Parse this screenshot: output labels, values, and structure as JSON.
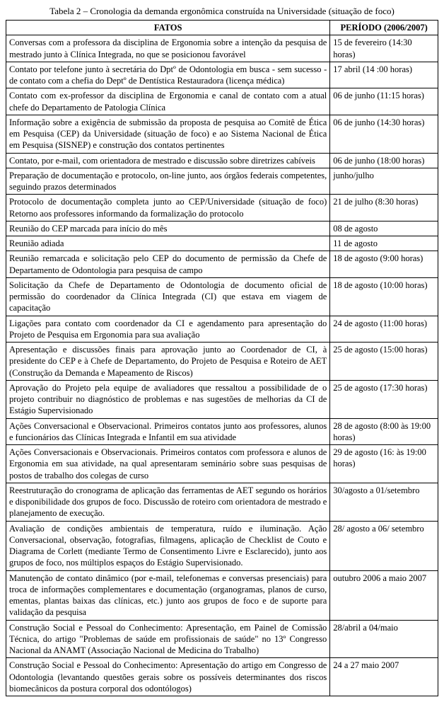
{
  "caption": "Tabela 2 – Cronologia da demanda ergonômica construída na Universidade (situação de foco)",
  "headers": {
    "fatos": "FATOS",
    "periodo": "PERÍODO (2006/2007)"
  },
  "rows": [
    {
      "fato": "Conversas com a professora da disciplina de Ergonomia sobre a intenção da pesquisa de mestrado junto à Clínica Integrada, no que se posicionou favorável",
      "periodo": "15 de fevereiro (14:30 horas)"
    },
    {
      "fato": "Contato por telefone junto à secretária do Dptº de Odontologia em busca - sem sucesso - de contato com a chefia do Deptº de Dentística Restauradora (licença médica)",
      "periodo": "17 abril (14 :00 horas)"
    },
    {
      "fato": "Contato com ex-professor da disciplina de Ergonomia e canal de contato com a atual chefe do Departamento de Patologia Clínica",
      "periodo": "06 de junho (11:15 horas)"
    },
    {
      "fato": "Informação sobre a exigência de submissão da proposta de pesquisa ao Comitê de Ética em Pesquisa (CEP) da Universidade (situação de foco) e ao Sistema Nacional de Ética em Pesquisa (SISNEP) e construção dos contatos pertinentes",
      "periodo": "06 de junho (14:30 horas)"
    },
    {
      "fato": "Contato, por e-mail, com orientadora de mestrado e discussão sobre diretrizes cabíveis",
      "periodo": "06 de junho (18:00 horas)"
    },
    {
      "fato": "Preparação de documentação e protocolo, on-line junto, aos órgãos federais competentes, seguindo prazos determinados",
      "periodo": "junho/julho"
    },
    {
      "fato": "Protocolo de documentação completa junto ao CEP/Universidade (situação de foco) Retorno aos professores informando da formalização do protocolo",
      "periodo": "21 de julho (8:30 horas)"
    },
    {
      "fato": "Reunião do CEP marcada para início do mês",
      "periodo": "08 de agosto"
    },
    {
      "fato": "Reunião adiada",
      "periodo": "11 de agosto"
    },
    {
      "fato": "Reunião remarcada e solicitação pelo CEP do documento de permissão da Chefe de Departamento de Odontologia para pesquisa de campo",
      "periodo": "18 de agosto (9:00 horas)"
    },
    {
      "fato": "Solicitação da Chefe de Departamento de Odontologia de documento oficial de permissão do coordenador da Clínica Integrada (CI) que estava em viagem de capacitação",
      "periodo": "18 de agosto (10:00 horas)"
    },
    {
      "fato": "Ligações para contato com coordenador da CI e agendamento para apresentação do Projeto de Pesquisa em Ergonomia para sua avaliação",
      "periodo": "24 de agosto (11:00 horas)"
    },
    {
      "fato": "Apresentação e discussões finais para aprovação junto ao Coordenador de CI, à presidente do CEP e à Chefe de Departamento, do Projeto de Pesquisa e Roteiro de AET (Construção da Demanda e Mapeamento de Riscos)",
      "periodo": "25 de agosto (15:00 horas)"
    },
    {
      "fato": "Aprovação do Projeto pela equipe de avaliadores que ressaltou a possibilidade de o projeto contribuir no diagnóstico de problemas e nas sugestões de melhorias da CI de Estágio Supervisionado",
      "periodo": "25 de agosto (17:30 horas)"
    },
    {
      "fato": "Ações Conversacional e Observacional. Primeiros contatos junto aos professores, alunos e funcionários das Clínicas Integrada e Infantil em sua atividade",
      "periodo": "28 de agosto (8:00 às 19:00 horas)"
    },
    {
      "fato": "Ações Conversacionais e Observacionais. Primeiros contatos com professora e alunos de Ergonomia em sua atividade, na qual apresentaram seminário sobre suas pesquisas de postos de trabalho dos colegas de curso",
      "periodo": "29 de agosto (16: às 19:00 horas)"
    },
    {
      "fato": "Reestruturação do cronograma de aplicação das ferramentas de AET segundo os horários e disponibilidade dos grupos de foco. Discussão de roteiro com orientadora de mestrado e planejamento de execução.",
      "periodo": "30/agosto a 01/setembro"
    },
    {
      "fato": "Avaliação de condições ambientais de temperatura, ruído e iluminação. Ação Conversacional, observação, fotografias, filmagens, aplicação de Checklist de Couto e Diagrama de Corlett (mediante Termo de Consentimento Livre e Esclarecido), junto aos grupos de foco, nos múltiplos espaços do Estágio Supervisionado.",
      "periodo": "28/ agosto a 06/ setembro"
    },
    {
      "fato": "Manutenção de contato dinâmico (por e-mail, telefonemas e conversas presenciais) para troca de informações complementares e documentação (organogramas, planos de curso, ementas, plantas baixas das clínicas, etc.) junto aos grupos de foco e de suporte para validação da pesquisa",
      "periodo": "outubro 2006 a maio 2007"
    },
    {
      "fato": "Construção Social e Pessoal do Conhecimento: Apresentação, em Painel de Comissão Técnica, do artigo \"Problemas de saúde em profissionais de saúde\" no 13º Congresso Nacional da ANAMT (Associação Nacional de Medicina do Trabalho)",
      "periodo": "28/abril a 04/maio"
    },
    {
      "fato": "Construção Social e Pessoal do Conhecimento: Apresentação do artigo em Congresso de Odontologia (levantando questões gerais sobre os possíveis determinantes dos riscos biomecânicos da postura corporal dos odontólogos)",
      "periodo": "24 a 27 maio 2007"
    }
  ],
  "style": {
    "font_family": "Times New Roman",
    "caption_fontsize_pt": 13,
    "cell_fontsize_pt": 12.5,
    "border_color": "#000000",
    "background_color": "#ffffff",
    "text_color": "#000000",
    "col_widths_pct": [
      75,
      25
    ],
    "text_align_fatos": "justify",
    "text_align_periodo": "left"
  }
}
